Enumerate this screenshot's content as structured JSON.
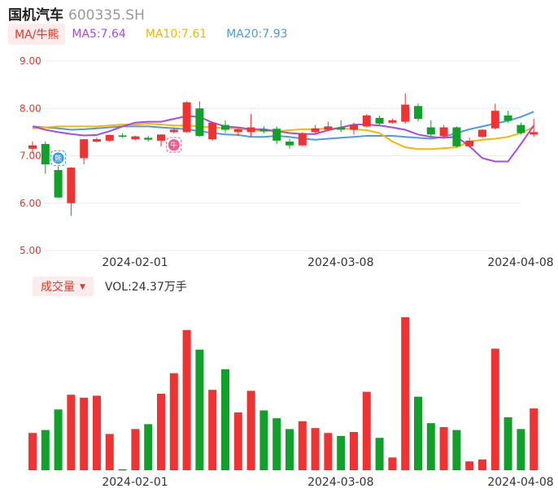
{
  "header": {
    "name": "国机汽车",
    "code": "600335.SH"
  },
  "indicator_select": "MA/牛熊",
  "ma_legend": [
    {
      "label": "MA5:7.64",
      "color": "#a64de0"
    },
    {
      "label": "MA10:7.61",
      "color": "#f2b900"
    },
    {
      "label": "MA20:7.93",
      "color": "#4f9ae8"
    }
  ],
  "volume_panel": {
    "indicator": "成交量",
    "value_label": "VOL:24.37万手"
  },
  "colors": {
    "up": "#f03232",
    "down": "#11a12a",
    "grid": "#ececec",
    "axis_text": "#e3382c",
    "date_text": "#333333"
  },
  "chart_data": {
    "type": "candlestick",
    "price_axis": {
      "ylim": [
        5.0,
        9.0
      ],
      "ticks": [
        "5.00",
        "6.00",
        "7.00",
        "8.00",
        "9.00"
      ]
    },
    "x_tick_labels": [
      {
        "label": "2024-02-01",
        "index": 5
      },
      {
        "label": "2024-03-08",
        "index": 21
      },
      {
        "label": "2024-04-08",
        "index": 35
      }
    ],
    "candles": [
      {
        "o": 7.15,
        "h": 7.3,
        "l": 7.05,
        "c": 7.22
      },
      {
        "o": 7.25,
        "h": 7.3,
        "l": 6.62,
        "c": 6.82
      },
      {
        "o": 6.7,
        "h": 6.78,
        "l": 6.12,
        "c": 6.12
      },
      {
        "o": 6.0,
        "h": 6.76,
        "l": 5.73,
        "c": 6.75
      },
      {
        "o": 6.95,
        "h": 7.35,
        "l": 6.82,
        "c": 7.35
      },
      {
        "o": 7.3,
        "h": 7.38,
        "l": 7.28,
        "c": 7.35
      },
      {
        "o": 7.32,
        "h": 7.45,
        "l": 7.3,
        "c": 7.44
      },
      {
        "o": 7.43,
        "h": 7.48,
        "l": 7.38,
        "c": 7.4
      },
      {
        "o": 7.35,
        "h": 7.42,
        "l": 7.33,
        "c": 7.41
      },
      {
        "o": 7.38,
        "h": 7.42,
        "l": 7.3,
        "c": 7.34
      },
      {
        "o": 7.32,
        "h": 7.45,
        "l": 7.2,
        "c": 7.45
      },
      {
        "o": 7.5,
        "h": 7.6,
        "l": 7.47,
        "c": 7.55
      },
      {
        "o": 7.5,
        "h": 8.15,
        "l": 7.48,
        "c": 8.13
      },
      {
        "o": 8.0,
        "h": 8.15,
        "l": 7.4,
        "c": 7.42
      },
      {
        "o": 7.35,
        "h": 7.72,
        "l": 7.32,
        "c": 7.7
      },
      {
        "o": 7.65,
        "h": 7.75,
        "l": 7.48,
        "c": 7.55
      },
      {
        "o": 7.5,
        "h": 7.58,
        "l": 7.42,
        "c": 7.56
      },
      {
        "o": 7.5,
        "h": 7.88,
        "l": 7.4,
        "c": 7.6
      },
      {
        "o": 7.55,
        "h": 7.62,
        "l": 7.48,
        "c": 7.52
      },
      {
        "o": 7.57,
        "h": 7.62,
        "l": 7.25,
        "c": 7.32
      },
      {
        "o": 7.3,
        "h": 7.36,
        "l": 7.15,
        "c": 7.22
      },
      {
        "o": 7.22,
        "h": 7.5,
        "l": 7.2,
        "c": 7.48
      },
      {
        "o": 7.5,
        "h": 7.65,
        "l": 7.48,
        "c": 7.58
      },
      {
        "o": 7.55,
        "h": 7.72,
        "l": 7.52,
        "c": 7.62
      },
      {
        "o": 7.6,
        "h": 7.75,
        "l": 7.5,
        "c": 7.55
      },
      {
        "o": 7.55,
        "h": 7.7,
        "l": 7.45,
        "c": 7.65
      },
      {
        "o": 7.62,
        "h": 7.88,
        "l": 7.6,
        "c": 7.85
      },
      {
        "o": 7.8,
        "h": 7.85,
        "l": 7.65,
        "c": 7.68
      },
      {
        "o": 7.7,
        "h": 7.78,
        "l": 7.68,
        "c": 7.75
      },
      {
        "o": 7.72,
        "h": 8.32,
        "l": 7.68,
        "c": 8.08
      },
      {
        "o": 8.05,
        "h": 8.1,
        "l": 7.72,
        "c": 7.78
      },
      {
        "o": 7.6,
        "h": 7.75,
        "l": 7.4,
        "c": 7.45
      },
      {
        "o": 7.42,
        "h": 7.65,
        "l": 7.38,
        "c": 7.6
      },
      {
        "o": 7.6,
        "h": 7.62,
        "l": 7.18,
        "c": 7.2
      },
      {
        "o": 7.2,
        "h": 7.38,
        "l": 7.18,
        "c": 7.32
      },
      {
        "o": 7.4,
        "h": 7.56,
        "l": 7.38,
        "c": 7.55
      },
      {
        "o": 7.58,
        "h": 8.1,
        "l": 7.56,
        "c": 7.95
      },
      {
        "o": 7.85,
        "h": 7.95,
        "l": 7.7,
        "c": 7.74
      },
      {
        "o": 7.65,
        "h": 7.7,
        "l": 7.45,
        "c": 7.48
      },
      {
        "o": 7.45,
        "h": 7.78,
        "l": 7.4,
        "c": 7.5
      }
    ],
    "ma5": [
      7.62,
      7.55,
      7.5,
      7.46,
      7.43,
      7.44,
      7.52,
      7.62,
      7.7,
      7.72,
      7.72,
      7.78,
      7.84,
      7.82,
      7.7,
      7.62,
      7.6,
      7.56,
      7.56,
      7.52,
      7.48,
      7.46,
      7.46,
      7.54,
      7.6,
      7.66,
      7.66,
      7.64,
      7.6,
      7.55,
      7.45,
      7.4,
      7.38,
      7.4,
      7.2,
      6.95,
      6.88,
      6.88,
      7.25,
      7.64
    ],
    "ma10": [
      7.58,
      7.6,
      7.62,
      7.62,
      7.62,
      7.62,
      7.64,
      7.66,
      7.66,
      7.68,
      7.66,
      7.64,
      7.64,
      7.62,
      7.6,
      7.58,
      7.58,
      7.54,
      7.52,
      7.52,
      7.54,
      7.56,
      7.56,
      7.58,
      7.58,
      7.56,
      7.54,
      7.48,
      7.3,
      7.18,
      7.14,
      7.14,
      7.16,
      7.18,
      7.3,
      7.34,
      7.36,
      7.4,
      7.48,
      7.61
    ],
    "ma20": [
      7.62,
      7.6,
      7.58,
      7.55,
      7.56,
      7.58,
      7.6,
      7.62,
      7.62,
      7.62,
      7.6,
      7.58,
      7.56,
      7.52,
      7.48,
      7.45,
      7.44,
      7.4,
      7.4,
      7.42,
      7.4,
      7.36,
      7.34,
      7.36,
      7.38,
      7.4,
      7.42,
      7.42,
      7.42,
      7.4,
      7.38,
      7.36,
      7.4,
      7.48,
      7.56,
      7.62,
      7.68,
      7.74,
      7.82,
      7.93
    ],
    "volume": [
      0.38,
      0.41,
      0.62,
      0.77,
      0.74,
      0.76,
      0.37,
      0.01,
      0.42,
      0.47,
      0.78,
      0.99,
      1.43,
      1.23,
      0.82,
      1.03,
      0.59,
      0.81,
      0.61,
      0.53,
      0.42,
      0.5,
      0.43,
      0.38,
      0.35,
      0.39,
      0.8,
      0.33,
      0.13,
      1.56,
      0.75,
      0.48,
      0.44,
      0.41,
      0.09,
      0.11,
      1.24,
      0.54,
      0.42,
      0.63
    ],
    "markers": [
      {
        "index": 2,
        "label": "熊",
        "kind": "bear"
      },
      {
        "index": 11,
        "label": "牛",
        "kind": "bull"
      }
    ]
  }
}
